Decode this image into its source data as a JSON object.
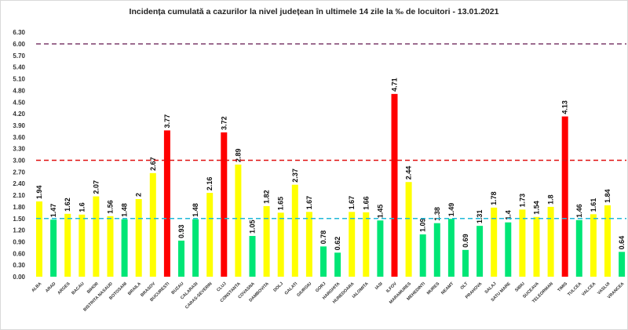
{
  "chart_data": {
    "type": "bar",
    "title": "Incidența cumulată a cazurilor la nivel județean în ultimele 14 zile la ‰ de locuitori - 13.01.2021",
    "xlabel": "",
    "ylabel": "",
    "ylim": [
      0,
      6.3
    ],
    "yticks": [
      "0.00",
      "0.30",
      "0.60",
      "0.90",
      "1.20",
      "1.50",
      "1.80",
      "2.10",
      "2.40",
      "2.70",
      "3.00",
      "3.30",
      "3.60",
      "3.90",
      "4.20",
      "4.50",
      "4.80",
      "5.10",
      "5.40",
      "5.70",
      "6.00",
      "6.30"
    ],
    "grid": false,
    "categories": [
      "ALBA",
      "ARAD",
      "ARGES",
      "BACAU",
      "BIHOR",
      "BISTRITA NASAUD",
      "BOTOSANI",
      "BRAILA",
      "BRASOV",
      "BUCURESTI",
      "BUZAU",
      "CALARASI",
      "CARAS-SEVERIN",
      "CLUJ",
      "CONSTANTA",
      "COVASNA",
      "DAMBOVITA",
      "DOLJ",
      "GALATI",
      "GIURGIU",
      "GORJ",
      "HARGHITA",
      "HUNEDOARA",
      "IALOMITA",
      "IASI",
      "ILFOV",
      "MARAMURES",
      "MEHEDINTI",
      "MURES",
      "NEAMT",
      "OLT",
      "PRAHOVA",
      "SALAJ",
      "SATU MARE",
      "SIBIU",
      "SUCEAVA",
      "TELEORMAN",
      "TIMIS",
      "TULCEA",
      "VALCEA",
      "VASLUI",
      "VRANCEA"
    ],
    "values": [
      1.94,
      1.47,
      1.62,
      1.6,
      2.07,
      1.56,
      1.48,
      2,
      2.67,
      3.77,
      0.93,
      1.48,
      2.16,
      3.72,
      2.89,
      1.05,
      1.82,
      1.65,
      2.37,
      1.67,
      0.78,
      0.62,
      1.67,
      1.66,
      1.45,
      4.71,
      2.44,
      1.09,
      1.38,
      1.49,
      0.69,
      1.31,
      1.78,
      1.4,
      1.73,
      1.54,
      1.8,
      4.13,
      1.46,
      1.61,
      1.84,
      0.64
    ],
    "value_labels": [
      "1.94",
      "1.47",
      "1.62",
      "1.6",
      "2.07",
      "1.56",
      "1.48",
      "2",
      "2.67",
      "3.77",
      "0.93",
      "1.48",
      "2.16",
      "3.72",
      "2.89",
      "1.05",
      "1.82",
      "1.65",
      "2.37",
      "1.67",
      "0.78",
      "0.62",
      "1.67",
      "1.66",
      "1.45",
      "4.71",
      "2.44",
      "1.09",
      "1.38",
      "1.49",
      "0.69",
      "1.31",
      "1.78",
      "1.4",
      "1.73",
      "1.54",
      "1.8",
      "4.13",
      "1.46",
      "1.61",
      "1.84",
      "0.64"
    ],
    "thresholds": [
      {
        "value": 6.0,
        "color": "#7b3b6b",
        "style": "dashed"
      },
      {
        "value": 3.0,
        "color": "#e01010",
        "style": "dashed"
      },
      {
        "value": 1.5,
        "color": "#1fb8d8",
        "style": "dashed"
      }
    ],
    "colors": {
      "below_1_5": "#00e676",
      "between_1_5_and_3": "#ffff00",
      "above_3": "#ff0000"
    }
  }
}
